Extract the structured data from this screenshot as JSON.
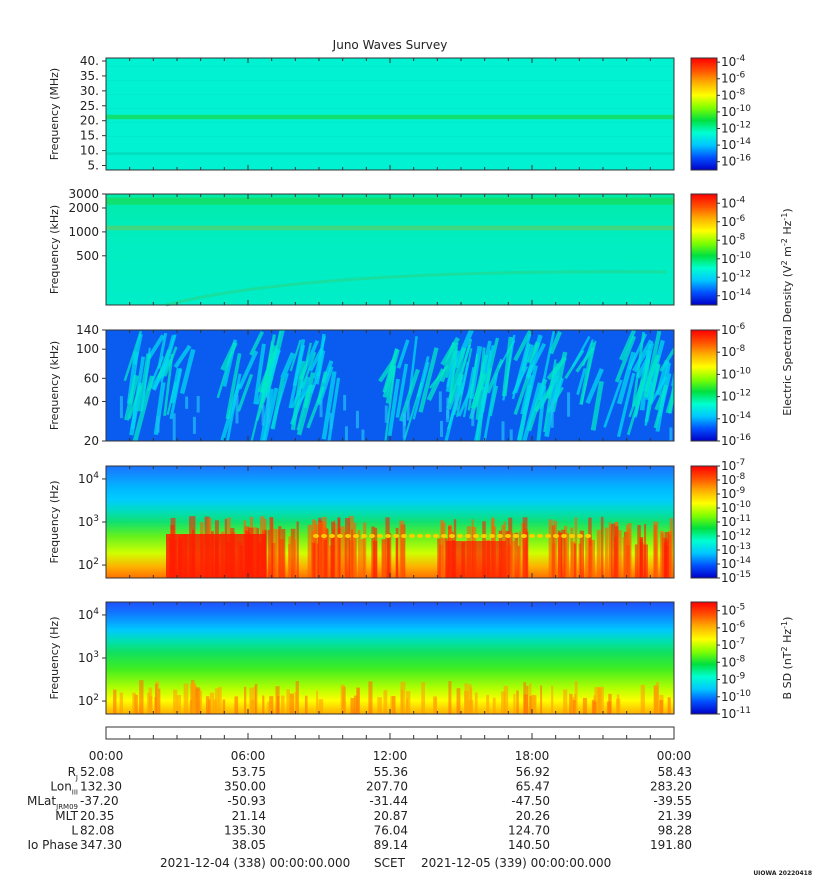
{
  "title": "Juno Waves Survey",
  "credit": "UIOWA 20220418",
  "colors": {
    "colormap": [
      "#0000c8",
      "#0050ff",
      "#00c8ff",
      "#00ffd0",
      "#00e040",
      "#80ff00",
      "#ffff00",
      "#ffb000",
      "#ff5000",
      "#ff0000"
    ]
  },
  "chart_data": [
    {
      "type": "heatmap",
      "ylabel": "Frequency (MHz)",
      "yscale": "linear",
      "ylim": [
        3.5,
        41
      ],
      "yticks": [
        {
          "v": 40,
          "label": "40."
        },
        {
          "v": 35,
          "label": "35."
        },
        {
          "v": 30,
          "label": "30."
        },
        {
          "v": 25,
          "label": "25."
        },
        {
          "v": 20,
          "label": "20."
        },
        {
          "v": 15,
          "label": "15."
        },
        {
          "v": 10,
          "label": "10."
        },
        {
          "v": 5,
          "label": "5."
        }
      ],
      "colorbar": {
        "ticks": [
          {
            "exp": "-4",
            "label": "10-4"
          },
          {
            "exp": "-6",
            "label": "10-6"
          },
          {
            "exp": "-8",
            "label": "10-8"
          },
          {
            "exp": "-10",
            "label": "10-10"
          },
          {
            "exp": "-12",
            "label": "10-12"
          },
          {
            "exp": "-14",
            "label": "10-14"
          },
          {
            "exp": "-16",
            "label": "10-16"
          }
        ],
        "range": [
          -17,
          -3.5
        ]
      },
      "background": "#00f2d2",
      "bands": [
        {
          "y0": 20.5,
          "y1": 22.0,
          "color": "#10e070"
        },
        {
          "y0": 8.5,
          "y1": 9.5,
          "color": "#00e0c0"
        }
      ]
    },
    {
      "type": "heatmap",
      "ylabel": "Frequency (kHz)",
      "yscale": "log",
      "ylim": [
        120,
        3000
      ],
      "yticks": [
        {
          "v": 3000,
          "label": "3000"
        },
        {
          "v": 2000,
          "label": "2000"
        },
        {
          "v": 1000,
          "label": "1000"
        },
        {
          "v": 500,
          "label": "500"
        }
      ],
      "colorbar": {
        "ticks": [
          {
            "label": "10-4"
          },
          {
            "label": "10-6"
          },
          {
            "label": "10-8"
          },
          {
            "label": "10-10"
          },
          {
            "label": "10-12"
          },
          {
            "label": "10-14"
          }
        ],
        "range": [
          -15,
          -3
        ]
      },
      "background": "#00eec0",
      "bands": [
        {
          "y0": 2200,
          "y1": 2700,
          "color": "#10e070"
        },
        {
          "y0": 1050,
          "y1": 1200,
          "color": "#40d880"
        }
      ]
    },
    {
      "type": "heatmap",
      "ylabel": "Frequency (kHz)",
      "yscale": "log",
      "ylim": [
        20,
        140
      ],
      "yticks": [
        {
          "v": 140,
          "label": "140"
        },
        {
          "v": 100,
          "label": "100"
        },
        {
          "v": 60,
          "label": "60"
        },
        {
          "v": 40,
          "label": "40"
        },
        {
          "v": 20,
          "label": "20"
        }
      ],
      "colorbar": {
        "ticks": [
          {
            "label": "10-6"
          },
          {
            "label": "10-8"
          },
          {
            "label": "10-10"
          },
          {
            "label": "10-12"
          },
          {
            "label": "10-14"
          },
          {
            "label": "10-16"
          }
        ],
        "range": [
          -16,
          -6
        ]
      },
      "background": "#0a5cf0"
    },
    {
      "type": "heatmap",
      "ylabel": "Frequency (Hz)",
      "yscale": "log",
      "ylim": [
        50,
        20000
      ],
      "yticks": [
        {
          "v": 10000,
          "base": "10",
          "exp": "4"
        },
        {
          "v": 1000,
          "base": "10",
          "exp": "3"
        },
        {
          "v": 100,
          "base": "10",
          "exp": "2"
        }
      ],
      "colorbar": {
        "ticks": [
          {
            "label": "10-7"
          },
          {
            "label": "10-8"
          },
          {
            "label": "10-9"
          },
          {
            "label": "10-10"
          },
          {
            "label": "10-11"
          },
          {
            "label": "10-12"
          },
          {
            "label": "10-13"
          },
          {
            "label": "10-14"
          },
          {
            "label": "10-15"
          }
        ],
        "range": [
          -15,
          -7
        ]
      }
    },
    {
      "type": "heatmap",
      "ylabel": "Frequency (Hz)",
      "yscale": "log",
      "ylim": [
        50,
        20000
      ],
      "yticks": [
        {
          "v": 10000,
          "base": "10",
          "exp": "4"
        },
        {
          "v": 1000,
          "base": "10",
          "exp": "3"
        },
        {
          "v": 100,
          "base": "10",
          "exp": "2"
        }
      ],
      "colorbar": {
        "ticks": [
          {
            "label": "10-5"
          },
          {
            "label": "10-6"
          },
          {
            "label": "10-7"
          },
          {
            "label": "10-8"
          },
          {
            "label": "10-9"
          },
          {
            "label": "10-10"
          },
          {
            "label": "10-11"
          }
        ],
        "range": [
          -11,
          -4.5
        ]
      }
    }
  ],
  "colorbar_labels": {
    "electric": {
      "pre": "Electric Spectral Density (V",
      "sup1": "2",
      "mid": " m",
      "sup2": "-2",
      "mid2": " Hz",
      "sup3": "-1",
      "post": ")"
    },
    "magnetic": {
      "pre": "B SD (nT",
      "sup1": "2",
      "mid": " Hz",
      "sup2": "-1",
      "post": ")"
    }
  },
  "time_axis": {
    "ticks": [
      "00:00",
      "06:00",
      "12:00",
      "18:00",
      "00:00"
    ],
    "ephemeris": [
      {
        "name": "R",
        "sub": "J",
        "values": [
          "52.08",
          "53.75",
          "55.36",
          "56.92",
          "58.43"
        ]
      },
      {
        "name": "Lon",
        "sub": "III",
        "values": [
          "132.30",
          "350.00",
          "207.70",
          "65.47",
          "283.20"
        ]
      },
      {
        "name": "MLat",
        "sub": "JRM09",
        "values": [
          "-37.20",
          "-50.93",
          "-31.44",
          "-47.50",
          "-39.55"
        ]
      },
      {
        "name": "MLT",
        "sub": "",
        "values": [
          "20.35",
          "21.14",
          "20.87",
          "20.26",
          "21.39"
        ]
      },
      {
        "name": "L",
        "sub": "",
        "values": [
          "82.08",
          "135.30",
          "76.04",
          "124.70",
          "98.28"
        ]
      },
      {
        "name": "Io Phase",
        "sub": "",
        "values": [
          "347.30",
          "38.05",
          "89.14",
          "140.50",
          "191.80"
        ]
      }
    ],
    "start": "2021-12-04 (338) 00:00:00.000",
    "mid": "SCET",
    "end": "2021-12-05 (339) 00:00:00.000"
  }
}
